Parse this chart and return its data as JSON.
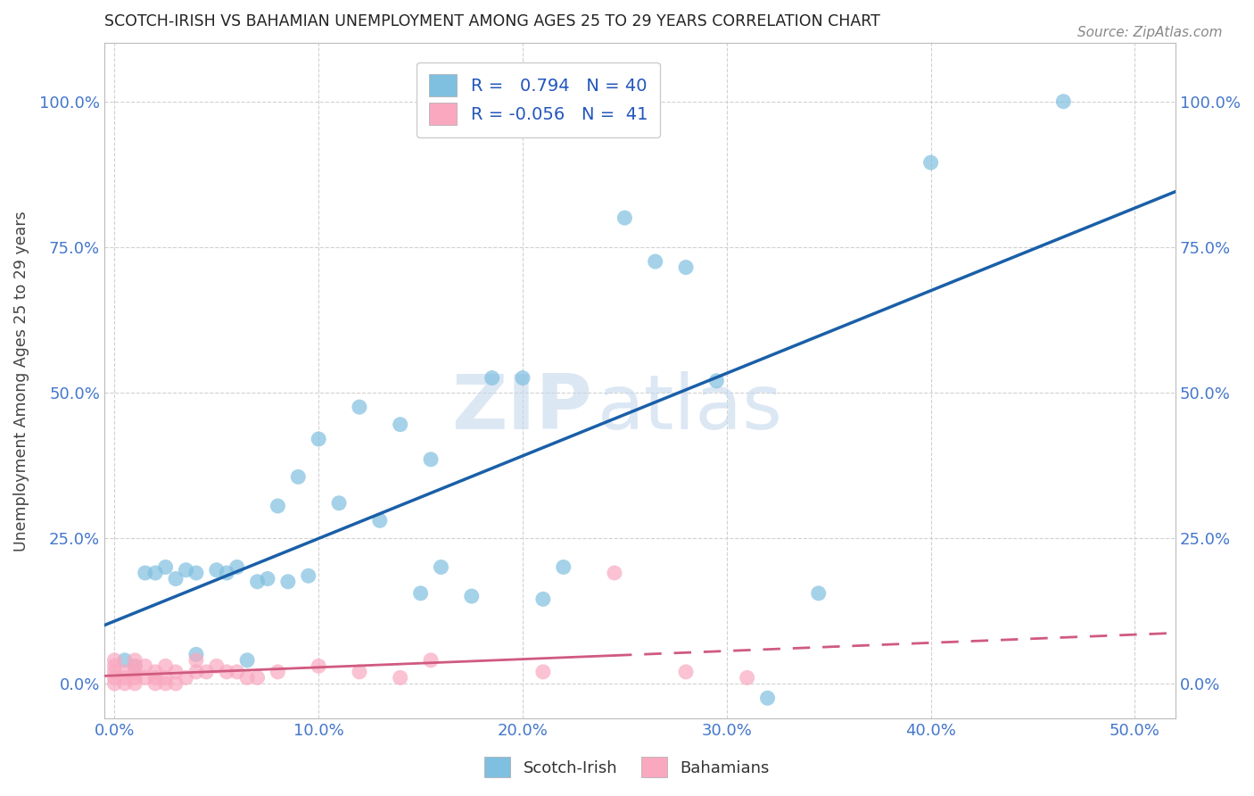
{
  "title": "SCOTCH-IRISH VS BAHAMIAN UNEMPLOYMENT AMONG AGES 25 TO 29 YEARS CORRELATION CHART",
  "source": "Source: ZipAtlas.com",
  "xlabel_ticks": [
    "0.0%",
    "10.0%",
    "20.0%",
    "30.0%",
    "40.0%",
    "50.0%"
  ],
  "xlabel_vals": [
    0.0,
    0.1,
    0.2,
    0.3,
    0.4,
    0.5
  ],
  "ylabel_ticks": [
    "0.0%",
    "25.0%",
    "50.0%",
    "75.0%",
    "100.0%"
  ],
  "ylabel_vals": [
    0.0,
    0.25,
    0.5,
    0.75,
    1.0
  ],
  "ylabel_label": "Unemployment Among Ages 25 to 29 years",
  "xlim": [
    -0.005,
    0.52
  ],
  "ylim": [
    -0.06,
    1.1
  ],
  "scotch_irish_color": "#7fbfdf",
  "scotch_irish_line_color": "#1a5fa8",
  "bahamian_color": "#f9a8c0",
  "bahamian_line_color": "#d05a80",
  "legend_R_scotch": "0.794",
  "legend_N_scotch": "40",
  "legend_R_bahamian": "-0.056",
  "legend_N_bahamian": "41",
  "scotch_irish_x": [
    0.005,
    0.01,
    0.015,
    0.02,
    0.025,
    0.03,
    0.035,
    0.04,
    0.04,
    0.05,
    0.055,
    0.06,
    0.065,
    0.07,
    0.075,
    0.08,
    0.085,
    0.09,
    0.095,
    0.1,
    0.11,
    0.12,
    0.13,
    0.14,
    0.15,
    0.155,
    0.16,
    0.175,
    0.185,
    0.2,
    0.21,
    0.22,
    0.25,
    0.265,
    0.28,
    0.295,
    0.32,
    0.345,
    0.4,
    0.465
  ],
  "scotch_irish_y": [
    0.04,
    0.03,
    0.19,
    0.19,
    0.2,
    0.18,
    0.195,
    0.05,
    0.19,
    0.195,
    0.19,
    0.2,
    0.04,
    0.175,
    0.18,
    0.305,
    0.175,
    0.355,
    0.185,
    0.42,
    0.31,
    0.475,
    0.28,
    0.445,
    0.155,
    0.385,
    0.2,
    0.15,
    0.525,
    0.525,
    0.145,
    0.2,
    0.8,
    0.725,
    0.715,
    0.52,
    -0.025,
    0.155,
    0.895,
    1.0
  ],
  "bahamian_x": [
    0.0,
    0.0,
    0.0,
    0.0,
    0.0,
    0.005,
    0.005,
    0.005,
    0.01,
    0.01,
    0.01,
    0.01,
    0.01,
    0.015,
    0.015,
    0.02,
    0.02,
    0.02,
    0.025,
    0.025,
    0.025,
    0.03,
    0.03,
    0.035,
    0.04,
    0.04,
    0.045,
    0.05,
    0.055,
    0.06,
    0.065,
    0.07,
    0.08,
    0.1,
    0.12,
    0.14,
    0.155,
    0.21,
    0.245,
    0.28,
    0.31
  ],
  "bahamian_y": [
    0.0,
    0.01,
    0.02,
    0.03,
    0.04,
    0.0,
    0.01,
    0.02,
    0.0,
    0.01,
    0.02,
    0.03,
    0.04,
    0.01,
    0.03,
    0.0,
    0.01,
    0.02,
    0.0,
    0.01,
    0.03,
    0.0,
    0.02,
    0.01,
    0.02,
    0.04,
    0.02,
    0.03,
    0.02,
    0.02,
    0.01,
    0.01,
    0.02,
    0.03,
    0.02,
    0.01,
    0.04,
    0.02,
    0.19,
    0.02,
    0.01
  ],
  "watermark_zip": "ZIP",
  "watermark_atlas": "atlas",
  "grid_color": "#cccccc",
  "background_color": "#ffffff",
  "tick_color": "#4477cc",
  "title_color": "#222222",
  "ylabel_color": "#444444",
  "legend_label_color": "#2255bb"
}
